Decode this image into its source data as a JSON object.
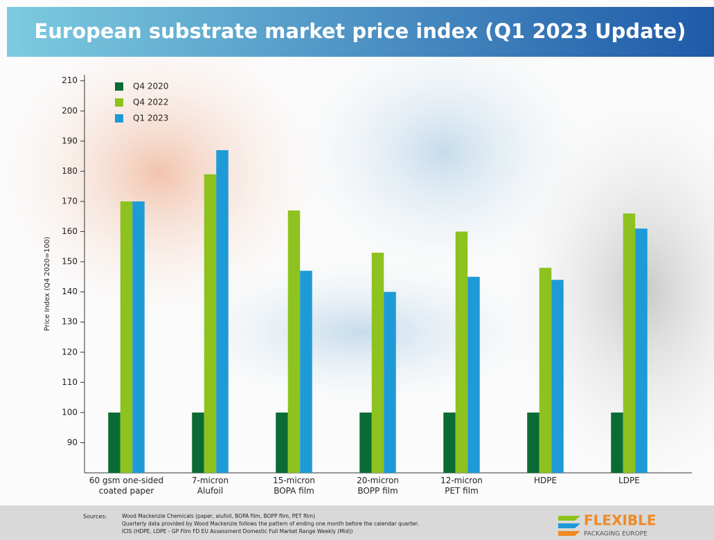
{
  "chart_data": {
    "type": "bar",
    "title": "European substrate market price index (Q1 2023 Update)",
    "y_label": "Price Index (Q4 2020=100)",
    "categories": [
      "60 gsm one-sided\ncoated paper",
      "7-micron\nAlufoil",
      "15-micron\nBOPA film",
      "20-micron\nBOPP film",
      "12-micron\nPET film",
      "HDPE",
      "LDPE"
    ],
    "series": [
      {
        "name": "Q4 2020",
        "color": "#0b6b34",
        "values": [
          100,
          100,
          100,
          100,
          100,
          100,
          100
        ]
      },
      {
        "name": "Q4 2022",
        "color": "#8dc21f",
        "values": [
          170,
          179,
          167,
          153,
          160,
          148,
          166
        ]
      },
      {
        "name": "Q1 2023",
        "color": "#1e9ad6",
        "values": [
          170,
          187,
          147,
          140,
          145,
          144,
          161
        ]
      }
    ],
    "ylim": [
      80,
      212
    ],
    "yticks": [
      90,
      100,
      110,
      120,
      130,
      140,
      150,
      160,
      170,
      180,
      190,
      200,
      210
    ],
    "legend": "top-left"
  },
  "footer": {
    "sources_label": "Sources:",
    "sources": [
      "Wood Mackenzie Chemicals (paper, alufoil, BOPA film, BOPP film, PET film)",
      "Quarterly data provided by Wood Mackenzie follows the pattern of ending one month before the calendar quarter.",
      "ICIS (HDPE, LDPE - GP Film FD EU Assessment Domestic Full Market Range Weekly (Mid))"
    ],
    "logo_main": "FLEXIBLE",
    "logo_sub": "PACKAGING EUROPE"
  }
}
